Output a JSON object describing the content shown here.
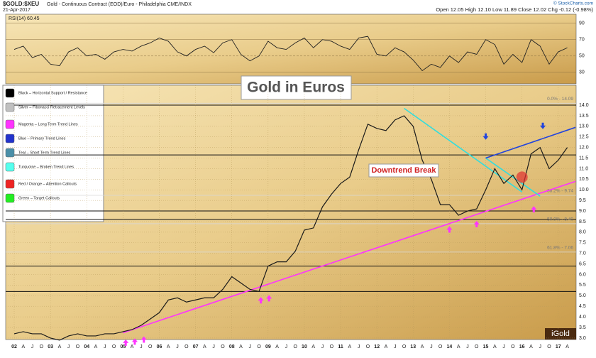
{
  "chart_data": {
    "type": "line",
    "symbol": "$GOLD:$XEU",
    "description": "Gold - Continuous Contract (EOD)/Euro - Philadelphia CME/INDX",
    "date": "21-Apr-2017",
    "quote": "Open 12.05  High 12.10  Low 11.89  Close 12.02  Chg -0.12 (-0.98%)",
    "copyright": "© StockCharts.com",
    "title": "Gold in Euros",
    "annotation": "Downtrend Break",
    "logo": "iGold",
    "categories": [
      "02",
      "A",
      "J",
      "O",
      "03",
      "A",
      "J",
      "O",
      "04",
      "A",
      "J",
      "O",
      "05",
      "A",
      "J",
      "O",
      "06",
      "A",
      "J",
      "O",
      "07",
      "A",
      "J",
      "O",
      "08",
      "A",
      "J",
      "O",
      "09",
      "A",
      "J",
      "O",
      "10",
      "A",
      "J",
      "O",
      "11",
      "A",
      "J",
      "O",
      "12",
      "A",
      "J",
      "O",
      "13",
      "A",
      "J",
      "O",
      "14",
      "A",
      "J",
      "O",
      "15",
      "A",
      "J",
      "O",
      "16",
      "A",
      "J",
      "O",
      "17",
      "A"
    ],
    "series": [
      {
        "name": "Gold/Euro",
        "color": "#1a1a1a",
        "values": [
          3.2,
          3.3,
          3.2,
          3.2,
          3.0,
          2.9,
          3.1,
          3.2,
          3.1,
          3.1,
          3.2,
          3.2,
          3.3,
          3.4,
          3.6,
          3.9,
          4.2,
          4.8,
          4.9,
          4.7,
          4.8,
          4.9,
          4.9,
          5.3,
          5.9,
          5.6,
          5.3,
          5.2,
          6.4,
          6.6,
          6.6,
          7.1,
          8.1,
          8.2,
          9.2,
          9.8,
          10.3,
          10.6,
          11.9,
          13.1,
          12.9,
          12.8,
          13.3,
          13.5,
          13.0,
          11.4,
          10.5,
          9.3,
          9.3,
          8.8,
          9.0,
          9.1,
          10.0,
          11.0,
          10.3,
          10.7,
          10.0,
          11.7,
          12.0,
          11.0,
          11.4,
          12.0
        ]
      }
    ],
    "ylim": [
      2.93,
      14.94
    ],
    "yticks": [
      {
        "value": 3,
        "label": "3.0"
      },
      {
        "value": 3.5,
        "label": "3.5"
      },
      {
        "value": 4,
        "label": "4.0"
      },
      {
        "value": 4.5,
        "label": "4.5"
      },
      {
        "value": 5,
        "label": "5.0"
      },
      {
        "value": 5.5,
        "label": "5.5"
      },
      {
        "value": 6,
        "label": "6.0"
      },
      {
        "value": 6.5,
        "label": "6.5"
      },
      {
        "value": 7,
        "label": "7.0"
      },
      {
        "value": 7.5,
        "label": "7.5"
      },
      {
        "value": 8,
        "label": "8.0"
      },
      {
        "value": 8.5,
        "label": "8.5"
      },
      {
        "value": 9,
        "label": "9.0"
      },
      {
        "value": 9.5,
        "label": "9.5"
      },
      {
        "value": 10,
        "label": "10.0"
      },
      {
        "value": 10.5,
        "label": "10.5"
      },
      {
        "value": 11,
        "label": "11.0"
      },
      {
        "value": 11.5,
        "label": "11.5"
      },
      {
        "value": 12,
        "label": "12.0"
      },
      {
        "value": 12.5,
        "label": "12.5"
      },
      {
        "value": 13,
        "label": "13.0"
      },
      {
        "value": 13.5,
        "label": "13.5"
      },
      {
        "value": 14,
        "label": "14.0"
      }
    ],
    "hlines": [
      14.0,
      11.65,
      9.0,
      8.6,
      6.4,
      5.2
    ],
    "fib_levels": [
      {
        "label": "0.0% - 14.09",
        "value": 14.09
      },
      {
        "label": "38.2% - 9.74",
        "value": 9.74
      },
      {
        "label": "50.0% - 8.40",
        "value": 8.4
      },
      {
        "label": "61.8% - 7.06",
        "value": 7.06
      }
    ],
    "trend_lines": [
      {
        "color": "#ff33ff",
        "x": [
          12,
          61.9
        ],
        "values": [
          3.25,
          10.4
        ]
      },
      {
        "color": "#33dddd",
        "x": [
          43,
          56
        ],
        "values": [
          13.85,
          9.9
        ]
      },
      {
        "color": "#33dddd",
        "x": [
          52,
          58
        ],
        "values": [
          11.5,
          9.7
        ]
      },
      {
        "color": "#2244dd",
        "x": [
          52,
          61.9
        ],
        "values": [
          11.5,
          12.95
        ]
      }
    ],
    "arrows": [
      {
        "color": "#ff33ff",
        "x": 12.3,
        "value": 3.0
      },
      {
        "color": "#ff33ff",
        "x": 13.3,
        "value": 3.05
      },
      {
        "color": "#ff33ff",
        "x": 14.3,
        "value": 3.15
      },
      {
        "color": "#ff33ff",
        "x": 27.2,
        "value": 5.0
      },
      {
        "color": "#ff33ff",
        "x": 28.1,
        "value": 5.1
      },
      {
        "color": "#ff33ff",
        "x": 48,
        "value": 8.35
      },
      {
        "color": "#ff33ff",
        "x": 51,
        "value": 8.6
      },
      {
        "color": "#ff33ff",
        "x": 57.3,
        "value": 9.3
      },
      {
        "color": "#2244dd",
        "x": 52,
        "value": 12.3
      },
      {
        "color": "#2244dd",
        "x": 58.3,
        "value": 12.8
      }
    ],
    "callout": {
      "x": 56,
      "value": 10.6,
      "color": "#e03030"
    },
    "rsi": {
      "label": "RSI(14) 60.45",
      "color": "#222222",
      "ylim": [
        16,
        101
      ],
      "yticks": [
        30,
        50,
        70,
        90
      ],
      "values": [
        58,
        62,
        48,
        52,
        40,
        38,
        55,
        60,
        50,
        52,
        46,
        55,
        58,
        56,
        62,
        66,
        72,
        68,
        55,
        50,
        58,
        62,
        54,
        66,
        70,
        52,
        44,
        50,
        68,
        60,
        58,
        66,
        72,
        60,
        70,
        68,
        62,
        58,
        72,
        74,
        52,
        50,
        60,
        55,
        45,
        32,
        40,
        36,
        50,
        42,
        55,
        52,
        70,
        64,
        40,
        52,
        42,
        70,
        62,
        40,
        55,
        60
      ]
    },
    "legend": [
      {
        "label": "Black – Horizontal Support / Resistance",
        "color": "#000000"
      },
      {
        "label": "Silver – Fibonacci Retracement Levels",
        "color": "#c0c0c0"
      },
      {
        "label": "Magenta – Long Term Trend Lines",
        "color": "#ff33ff"
      },
      {
        "label": "Blue – Primary Trend Lines",
        "color": "#2233cc"
      },
      {
        "label": "Teal – Short Term Trend Lines",
        "color": "#4a8fa8"
      },
      {
        "label": "Turquoise – Broken Trend Lines",
        "color": "#55ffee"
      },
      {
        "label": "Red / Orange – Attention Callouts",
        "color": "#ee2222"
      },
      {
        "label": "Green – Target Callouts",
        "color": "#22ee22"
      }
    ]
  }
}
